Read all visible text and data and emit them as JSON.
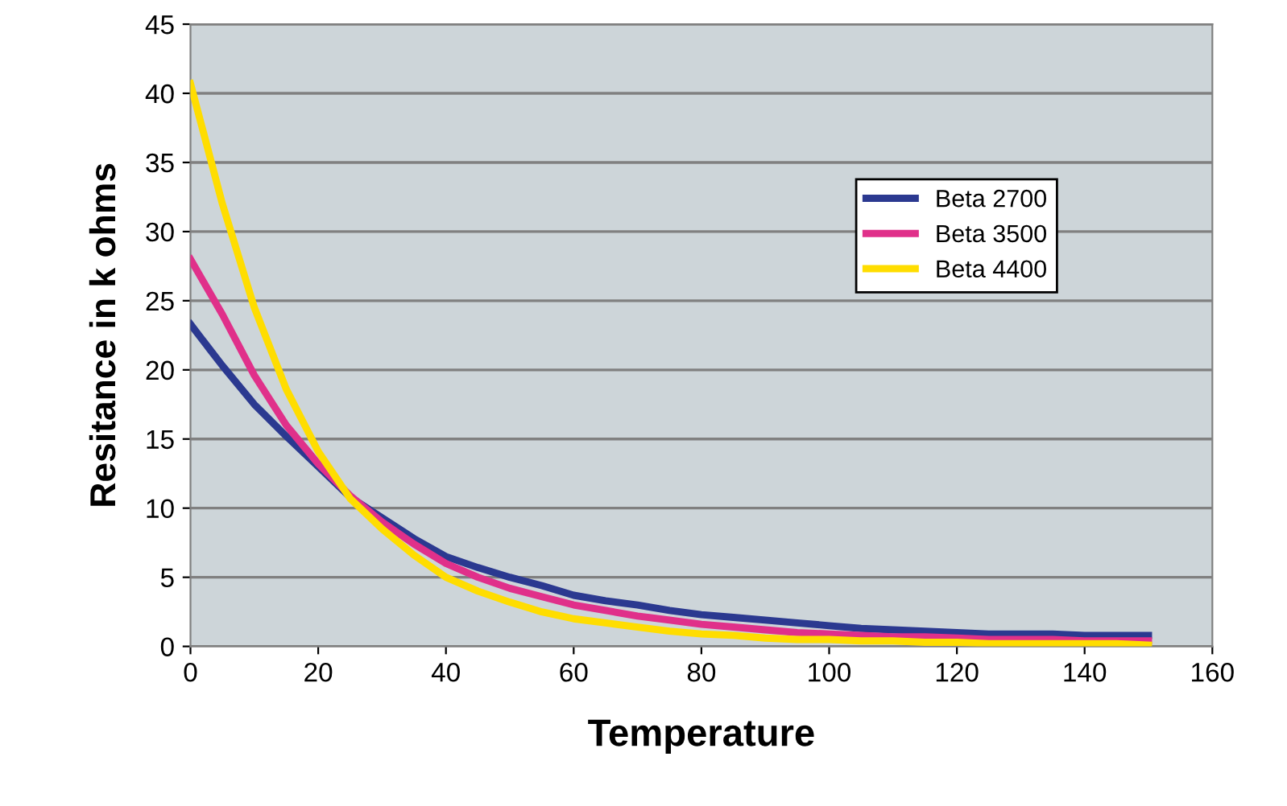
{
  "chart_data": {
    "type": "line",
    "xlabel": "Temperature",
    "ylabel": "Resitance in k ohms",
    "x": [
      0,
      5,
      10,
      15,
      20,
      25,
      30,
      35,
      40,
      45,
      50,
      55,
      60,
      65,
      70,
      75,
      80,
      85,
      90,
      95,
      100,
      105,
      110,
      115,
      120,
      125,
      130,
      135,
      140,
      145,
      150
    ],
    "series": [
      {
        "name": "Beta 2700",
        "color": "#2b3990",
        "values": [
          23.3,
          20.3,
          17.5,
          15.2,
          13.0,
          10.8,
          9.3,
          7.8,
          6.5,
          5.7,
          5.0,
          4.4,
          3.7,
          3.3,
          3.0,
          2.6,
          2.3,
          2.1,
          1.9,
          1.7,
          1.5,
          1.3,
          1.2,
          1.1,
          1.0,
          0.9,
          0.9,
          0.9,
          0.8,
          0.8,
          0.8
        ]
      },
      {
        "name": "Beta 3500",
        "color": "#e0308a",
        "values": [
          28.0,
          24.0,
          19.6,
          16.0,
          13.2,
          10.9,
          9.0,
          7.4,
          6.0,
          5.0,
          4.2,
          3.6,
          3.0,
          2.6,
          2.2,
          1.9,
          1.6,
          1.4,
          1.2,
          1.0,
          0.9,
          0.8,
          0.7,
          0.7,
          0.6,
          0.5,
          0.5,
          0.5,
          0.4,
          0.4,
          0.4
        ]
      },
      {
        "name": "Beta 4400",
        "color": "#ffdd00",
        "values": [
          40.7,
          32.0,
          24.5,
          18.6,
          14.1,
          10.7,
          8.5,
          6.6,
          5.0,
          4.0,
          3.2,
          2.5,
          2.0,
          1.7,
          1.4,
          1.1,
          0.9,
          0.8,
          0.6,
          0.5,
          0.5,
          0.4,
          0.4,
          0.3,
          0.3,
          0.2,
          0.2,
          0.2,
          0.2,
          0.2,
          0.1
        ]
      }
    ],
    "xlim": [
      0,
      160
    ],
    "xticks": [
      0,
      20,
      40,
      60,
      80,
      100,
      120,
      140,
      160
    ],
    "ylim": [
      0,
      45
    ],
    "yticks": [
      0,
      5,
      10,
      15,
      20,
      25,
      30,
      35,
      40,
      45
    ],
    "grid": "y",
    "legend": "right",
    "marker": "none",
    "line_style": "solid"
  }
}
